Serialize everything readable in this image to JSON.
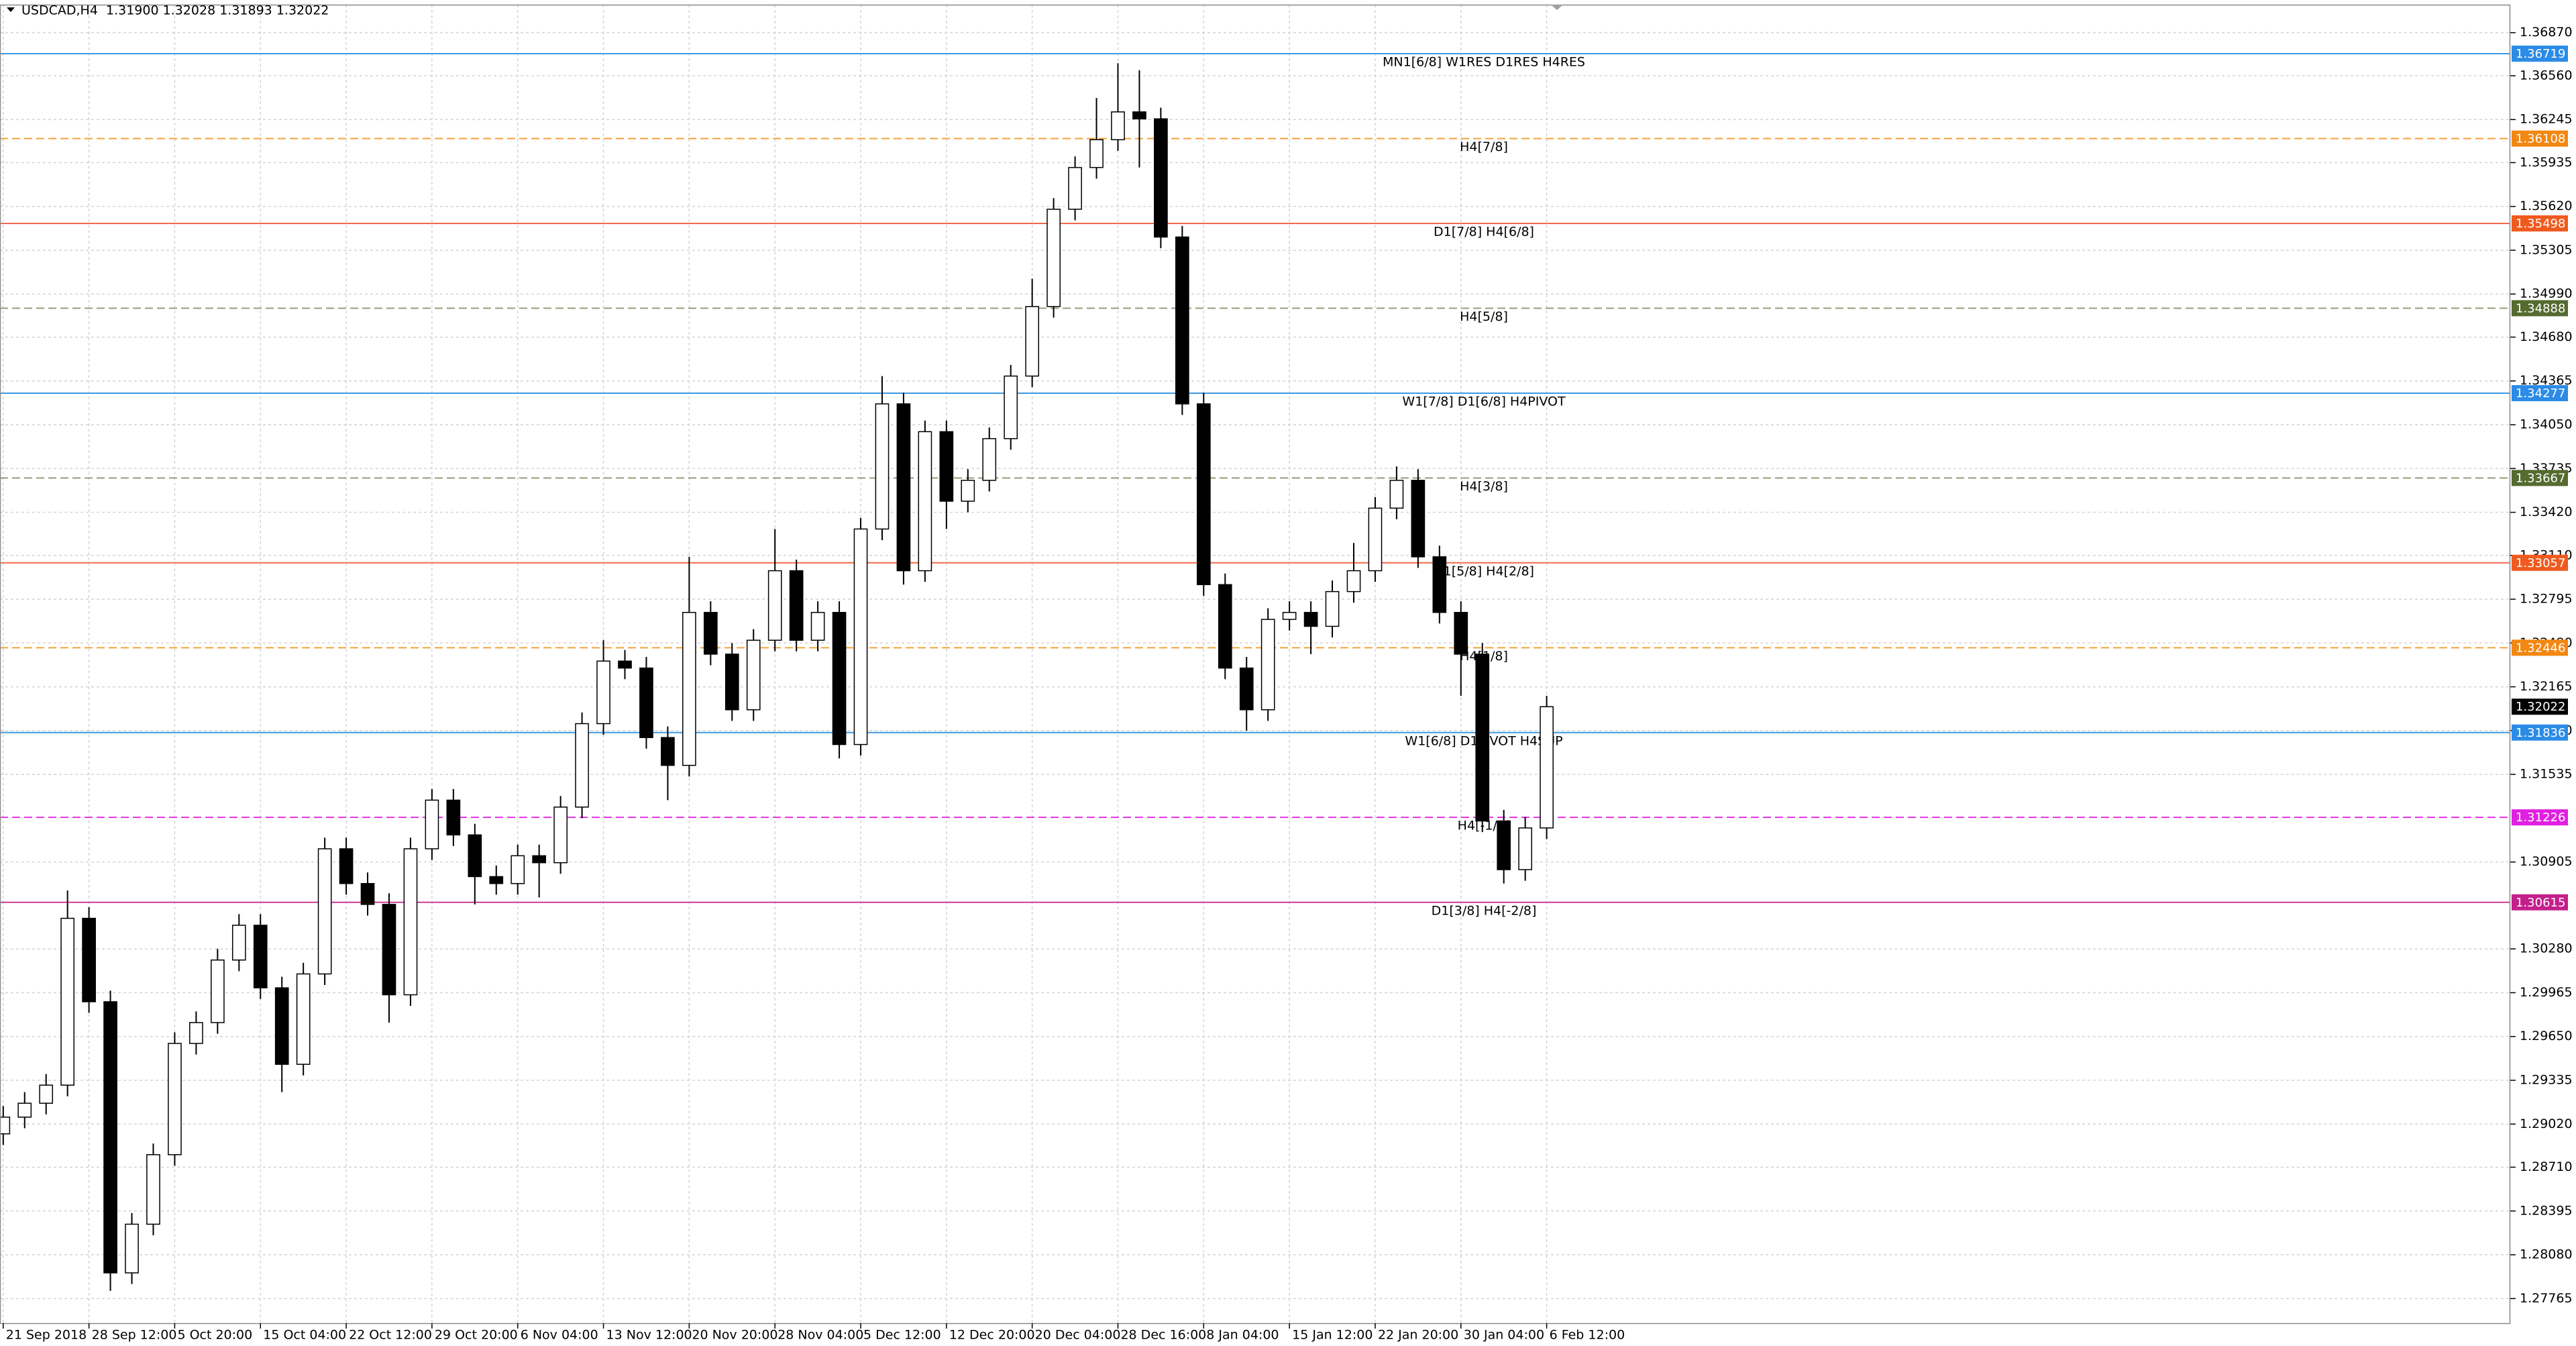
{
  "chart_data": {
    "type": "candlestick",
    "header": "USDCAD,H4  1.31900 1.32028 1.31893 1.32022",
    "bull_color": "#ffffff",
    "bear_color": "#000000",
    "grid": true,
    "xlim": [
      -0.15,
      116.95
    ],
    "xticks": [
      {
        "value": 0,
        "label": "21 Sep 2018"
      },
      {
        "value": 4,
        "label": "28 Sep 12:00"
      },
      {
        "value": 8,
        "label": "5 Oct 20:00"
      },
      {
        "value": 12,
        "label": "15 Oct 04:00"
      },
      {
        "value": 16,
        "label": "22 Oct 12:00"
      },
      {
        "value": 20,
        "label": "29 Oct 20:00"
      },
      {
        "value": 24,
        "label": "6 Nov 04:00"
      },
      {
        "value": 28,
        "label": "13 Nov 12:00"
      },
      {
        "value": 32,
        "label": "20 Nov 20:00"
      },
      {
        "value": 36,
        "label": "28 Nov 04:00"
      },
      {
        "value": 40,
        "label": "5 Dec 12:00"
      },
      {
        "value": 44,
        "label": "12 Dec 20:00"
      },
      {
        "value": 48,
        "label": "20 Dec 04:00"
      },
      {
        "value": 52,
        "label": "28 Dec 16:00"
      },
      {
        "value": 56,
        "label": "8 Jan 04:00"
      },
      {
        "value": 60,
        "label": "15 Jan 12:00"
      },
      {
        "value": 64,
        "label": "22 Jan 20:00"
      },
      {
        "value": 68,
        "label": "30 Jan 04:00"
      },
      {
        "value": 72,
        "label": "6 Feb 12:00"
      }
    ],
    "ylim": [
      1.27588,
      1.37071
    ],
    "yticks": [
      {
        "value": 1.3687,
        "label": "1.36870"
      },
      {
        "value": 1.3656,
        "label": "1.36560"
      },
      1.36245,
      1.35935,
      {
        "value": 1.3562,
        "label": "1.35620"
      },
      1.35305,
      {
        "value": 1.3499,
        "label": "1.34990"
      },
      {
        "value": 1.3468,
        "label": "1.34680"
      },
      1.34365,
      {
        "value": 1.3405,
        "label": "1.34050"
      },
      1.33735,
      {
        "value": 1.3342,
        "label": "1.33420"
      },
      {
        "value": 1.3311,
        "label": "1.33110"
      },
      1.32795,
      {
        "value": 1.3248,
        "label": "1.32480"
      },
      1.32165,
      {
        "value": 1.3185,
        "label": "1.31850"
      },
      1.31535,
      1.30905,
      {
        "value": 1.3028,
        "label": "1.30280"
      },
      1.29965,
      {
        "value": 1.2965,
        "label": "1.29650"
      },
      1.29335,
      {
        "value": 1.2902,
        "label": "1.29020"
      },
      {
        "value": 1.2871,
        "label": "1.28710"
      },
      1.28395,
      {
        "value": 1.2808,
        "label": "1.28080"
      },
      1.27765
    ],
    "levels": [
      {
        "value": 1.36719,
        "label": "MN1[6/8] W1RES D1RES H4RES",
        "color": "#3d9ae2",
        "box": "#2b8be6",
        "dashed": false
      },
      {
        "value": 1.36108,
        "label": "H4[7/8]",
        "color": "#f3a23a",
        "box": "#f28712",
        "dashed": true
      },
      {
        "value": 1.35498,
        "label": "D1[7/8] H4[6/8]",
        "color": "#f06a4a",
        "box": "#f05a1e",
        "dashed": false
      },
      {
        "value": 1.34888,
        "label": "H4[5/8]",
        "color": "#9a9a78",
        "box": "#556b2f",
        "dashed": true
      },
      {
        "value": 1.34277,
        "label": "W1[7/8] D1[6/8] H4PIVOT",
        "color": "#3d9ae2",
        "box": "#2b8be6",
        "dashed": false
      },
      {
        "value": 1.33667,
        "label": "H4[3/8]",
        "color": "#9a9a78",
        "box": "#556b2f",
        "dashed": true
      },
      {
        "value": 1.33057,
        "label": "D1[5/8] H4[2/8]",
        "color": "#f06a4a",
        "box": "#f05a1e",
        "dashed": false
      },
      {
        "value": 1.32446,
        "label": "H4[1/8]",
        "color": "#f3a23a",
        "box": "#f28712",
        "dashed": true
      },
      {
        "value": 1.31836,
        "label": "W1[6/8] D1PIVOT H4SUP",
        "color": "#3d9ae2",
        "box": "#2b8be6",
        "dashed": false
      },
      {
        "value": 1.31226,
        "label": "H4[-1/8]",
        "color": "#e233e2",
        "box": "#e020e0",
        "dashed": true
      },
      {
        "value": 1.30615,
        "label": "D1[3/8] H4[-2/8]",
        "color": "#cc3a9a",
        "box": "#c41f8a",
        "dashed": false
      }
    ],
    "open": [
      1.2895,
      1.2907,
      1.2917,
      1.293,
      1.305,
      1.299,
      1.2795,
      1.283,
      1.288,
      1.296,
      1.2975,
      1.302,
      1.3045,
      1.3,
      1.2945,
      1.301,
      1.31,
      1.3075,
      1.306,
      1.2995,
      1.31,
      1.3135,
      1.311,
      1.308,
      1.3075,
      1.3095,
      1.309,
      1.313,
      1.319,
      1.3235,
      1.323,
      1.318,
      1.316,
      1.327,
      1.324,
      1.32,
      1.325,
      1.33,
      1.325,
      1.327,
      1.3175,
      1.333,
      1.342,
      1.33,
      1.34,
      1.335,
      1.3365,
      1.3395,
      1.344,
      1.349,
      1.356,
      1.359,
      1.361,
      1.363,
      1.3625,
      1.354,
      1.342,
      1.329,
      1.323,
      1.32,
      1.3265,
      1.327,
      1.326,
      1.3285,
      1.33,
      1.3345,
      1.3365,
      1.331,
      1.327,
      1.324,
      1.312,
      1.3085,
      1.3115
    ],
    "high": [
      1.2915,
      1.2925,
      1.2938,
      1.307,
      1.3058,
      1.2998,
      1.2838,
      1.2888,
      1.2968,
      1.2983,
      1.3028,
      1.3053,
      1.3053,
      1.3008,
      1.3018,
      1.3108,
      1.3108,
      1.3083,
      1.3068,
      1.3108,
      1.3143,
      1.3143,
      1.3118,
      1.3088,
      1.3103,
      1.3103,
      1.3138,
      1.3198,
      1.325,
      1.3243,
      1.3238,
      1.3188,
      1.331,
      1.3278,
      1.3248,
      1.3258,
      1.333,
      1.3308,
      1.3278,
      1.3278,
      1.3338,
      1.344,
      1.3428,
      1.3408,
      1.3408,
      1.3373,
      1.3403,
      1.3448,
      1.351,
      1.3568,
      1.3598,
      1.364,
      1.3665,
      1.366,
      1.3633,
      1.3548,
      1.3428,
      1.3298,
      1.3238,
      1.3273,
      1.3278,
      1.3278,
      1.3293,
      1.332,
      1.3353,
      1.3375,
      1.3373,
      1.3318,
      1.3278,
      1.3248,
      1.3128,
      1.3123,
      1.321
    ],
    "low": [
      1.2887,
      1.2899,
      1.2909,
      1.2922,
      1.2982,
      1.2782,
      1.2787,
      1.2822,
      1.2872,
      1.2952,
      1.2967,
      1.3012,
      1.2992,
      1.2925,
      1.2937,
      1.3002,
      1.3067,
      1.3052,
      1.2975,
      1.2987,
      1.3092,
      1.3102,
      1.306,
      1.3067,
      1.3067,
      1.3065,
      1.3082,
      1.3122,
      1.3182,
      1.3222,
      1.3172,
      1.3135,
      1.3152,
      1.3232,
      1.3192,
      1.3192,
      1.3242,
      1.3242,
      1.3242,
      1.3165,
      1.3167,
      1.3322,
      1.329,
      1.3292,
      1.333,
      1.3342,
      1.3357,
      1.3387,
      1.3432,
      1.3482,
      1.3552,
      1.3582,
      1.3602,
      1.359,
      1.3532,
      1.3412,
      1.3282,
      1.3222,
      1.3185,
      1.3192,
      1.3257,
      1.324,
      1.3252,
      1.3277,
      1.3292,
      1.3337,
      1.3302,
      1.3262,
      1.321,
      1.3112,
      1.3075,
      1.3077,
      1.3107
    ],
    "close": [
      1.2907,
      1.2917,
      1.293,
      1.305,
      1.299,
      1.2795,
      1.283,
      1.288,
      1.296,
      1.2975,
      1.302,
      1.3045,
      1.3,
      1.2945,
      1.301,
      1.31,
      1.3075,
      1.306,
      1.2995,
      1.31,
      1.3135,
      1.311,
      1.308,
      1.3075,
      1.3095,
      1.309,
      1.313,
      1.319,
      1.3235,
      1.323,
      1.318,
      1.316,
      1.327,
      1.324,
      1.32,
      1.325,
      1.33,
      1.325,
      1.327,
      1.3175,
      1.333,
      1.342,
      1.33,
      1.34,
      1.335,
      1.3365,
      1.3395,
      1.344,
      1.349,
      1.356,
      1.359,
      1.361,
      1.363,
      1.3625,
      1.354,
      1.342,
      1.329,
      1.323,
      1.32,
      1.3265,
      1.327,
      1.326,
      1.3285,
      1.33,
      1.3345,
      1.3365,
      1.331,
      1.327,
      1.324,
      1.312,
      1.3085,
      1.3115,
      1.32022
    ]
  }
}
